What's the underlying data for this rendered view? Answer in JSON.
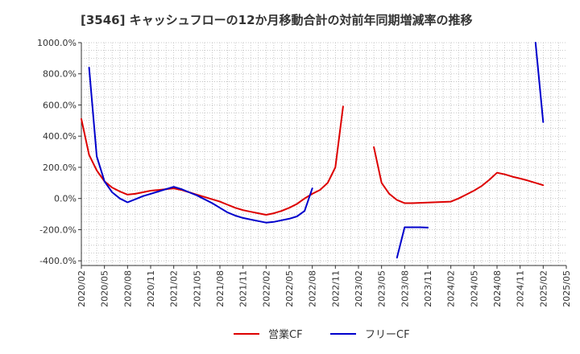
{
  "chart_data": {
    "type": "line",
    "title": "[3546]  キャッシュフローの12か月移動合計の対前年同期増減率の推移",
    "xlabel": "",
    "ylabel": "",
    "ylim": [
      -430,
      1000
    ],
    "yticks": [
      1000,
      800,
      600,
      400,
      200,
      0,
      -200,
      -400
    ],
    "ytick_labels": [
      "1000.0%",
      "800.0%",
      "600.0%",
      "400.0%",
      "200.0%",
      "0.0%",
      "-200.0%",
      "-400.0%"
    ],
    "xlim": [
      "2020/02",
      "2025/05"
    ],
    "x_tick_labels": [
      "2020/02",
      "2020/05",
      "2020/08",
      "2020/11",
      "2021/02",
      "2021/05",
      "2021/08",
      "2021/11",
      "2022/02",
      "2022/05",
      "2022/08",
      "2022/11",
      "2023/02",
      "2023/05",
      "2023/08",
      "2023/11",
      "2024/02",
      "2024/05",
      "2024/08",
      "2024/11",
      "2025/02",
      "2025/05"
    ],
    "series": [
      {
        "name": "営業CF",
        "color": "#dd0000",
        "segments": [
          [
            [
              "2020/02",
              510
            ],
            [
              "2020/03",
              280
            ],
            [
              "2020/04",
              180
            ],
            [
              "2020/05",
              110
            ],
            [
              "2020/06",
              70
            ],
            [
              "2020/07",
              45
            ],
            [
              "2020/08",
              25
            ],
            [
              "2020/09",
              30
            ],
            [
              "2020/10",
              40
            ],
            [
              "2020/11",
              50
            ],
            [
              "2020/12",
              55
            ],
            [
              "2021/01",
              60
            ],
            [
              "2021/02",
              65
            ],
            [
              "2021/03",
              55
            ],
            [
              "2021/04",
              40
            ],
            [
              "2021/05",
              25
            ],
            [
              "2021/06",
              10
            ],
            [
              "2021/07",
              -5
            ],
            [
              "2021/08",
              -20
            ],
            [
              "2021/09",
              -40
            ],
            [
              "2021/10",
              -60
            ],
            [
              "2021/11",
              -75
            ],
            [
              "2021/12",
              -85
            ],
            [
              "2022/01",
              -95
            ],
            [
              "2022/02",
              -105
            ],
            [
              "2022/03",
              -95
            ],
            [
              "2022/04",
              -80
            ],
            [
              "2022/05",
              -60
            ],
            [
              "2022/06",
              -35
            ],
            [
              "2022/07",
              0
            ],
            [
              "2022/08",
              30
            ],
            [
              "2022/09",
              55
            ],
            [
              "2022/10",
              100
            ],
            [
              "2022/11",
              200
            ],
            [
              "2022/12",
              590
            ]
          ],
          [
            [
              "2023/04",
              330
            ],
            [
              "2023/05",
              100
            ],
            [
              "2023/06",
              30
            ],
            [
              "2023/07",
              -10
            ],
            [
              "2023/08",
              -30
            ],
            [
              "2023/09",
              -30
            ],
            [
              "2023/10",
              -28
            ],
            [
              "2023/11",
              -26
            ],
            [
              "2023/12",
              -24
            ],
            [
              "2024/01",
              -22
            ],
            [
              "2024/02",
              -20
            ],
            [
              "2024/03",
              0
            ],
            [
              "2024/04",
              25
            ],
            [
              "2024/05",
              50
            ],
            [
              "2024/06",
              80
            ],
            [
              "2024/07",
              120
            ],
            [
              "2024/08",
              165
            ],
            [
              "2024/09",
              155
            ],
            [
              "2024/10",
              140
            ],
            [
              "2024/11",
              128
            ],
            [
              "2024/12",
              115
            ],
            [
              "2025/01",
              100
            ],
            [
              "2025/02",
              85
            ]
          ]
        ]
      },
      {
        "name": "フリーCF",
        "color": "#0000cc",
        "segments": [
          [
            [
              "2020/03",
              840
            ],
            [
              "2020/04",
              270
            ],
            [
              "2020/05",
              110
            ],
            [
              "2020/06",
              40
            ],
            [
              "2020/07",
              0
            ],
            [
              "2020/08",
              -25
            ],
            [
              "2020/09",
              -5
            ],
            [
              "2020/10",
              15
            ],
            [
              "2020/11",
              30
            ],
            [
              "2020/12",
              45
            ],
            [
              "2021/01",
              60
            ],
            [
              "2021/02",
              75
            ],
            [
              "2021/03",
              60
            ],
            [
              "2021/04",
              40
            ],
            [
              "2021/05",
              20
            ],
            [
              "2021/06",
              -5
            ],
            [
              "2021/07",
              -30
            ],
            [
              "2021/08",
              -60
            ],
            [
              "2021/09",
              -90
            ],
            [
              "2021/10",
              -110
            ],
            [
              "2021/11",
              -125
            ],
            [
              "2021/12",
              -135
            ],
            [
              "2022/01",
              -145
            ],
            [
              "2022/02",
              -155
            ],
            [
              "2022/03",
              -150
            ],
            [
              "2022/04",
              -140
            ],
            [
              "2022/05",
              -130
            ],
            [
              "2022/06",
              -115
            ],
            [
              "2022/07",
              -80
            ],
            [
              "2022/08",
              65
            ]
          ],
          [
            [
              "2023/07",
              -380
            ],
            [
              "2023/08",
              -185
            ],
            [
              "2023/09",
              -185
            ],
            [
              "2023/10",
              -185
            ],
            [
              "2023/11",
              -187
            ]
          ],
          [
            [
              "2025/01",
              1000
            ],
            [
              "2025/02",
              490
            ]
          ]
        ]
      }
    ],
    "legend": {
      "placement": "bottom-center",
      "entries": [
        "営業CF",
        "フリーCF"
      ]
    }
  }
}
